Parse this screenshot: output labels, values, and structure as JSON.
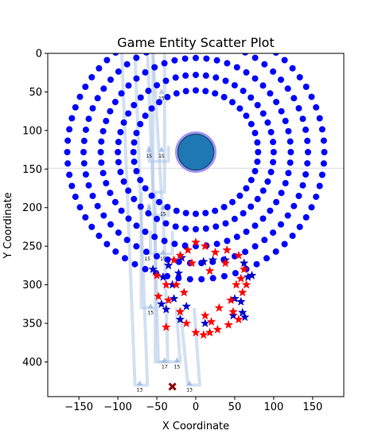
{
  "chart_data": {
    "type": "scatter",
    "title": "Game Entity Scatter Plot",
    "xlabel": "X Coordinate",
    "ylabel": "Y Coordinate",
    "xlim": [
      -190,
      190
    ],
    "ylim": [
      445,
      0
    ],
    "y_inverted": true,
    "xticks": [
      -150,
      -100,
      -50,
      0,
      50,
      100,
      150
    ],
    "yticks": [
      0,
      50,
      100,
      150,
      200,
      250,
      300,
      350,
      400
    ],
    "grid": false,
    "colors": {
      "rings": "#0000ff",
      "central": "#1f77b4",
      "central_edge": "#7b68ee",
      "blue_stars": "#0000cd",
      "red_stars": "#ff0000",
      "paths": "#aec7e8",
      "marker_x": "#8b0000"
    },
    "central_entity": {
      "x": 0,
      "y": 128,
      "radius": 25
    },
    "rings": [
      {
        "cx": 0,
        "cy": 128,
        "rx": 80,
        "ry": 80,
        "count": 40
      },
      {
        "cx": 0,
        "cy": 128,
        "rx": 100,
        "ry": 100,
        "count": 48
      },
      {
        "cx": 0,
        "cy": 128,
        "rx": 122,
        "ry": 122,
        "count": 56
      },
      {
        "cx": 0,
        "cy": 128,
        "rx": 144,
        "ry": 144,
        "count": 62
      },
      {
        "cx": 0,
        "cy": 128,
        "rx": 165,
        "ry": 165,
        "count": 70
      }
    ],
    "blue_stars": [
      [
        -35,
        275
      ],
      [
        -42,
        290
      ],
      [
        -30,
        300
      ],
      [
        -44,
        325
      ],
      [
        -38,
        332
      ],
      [
        -28,
        318
      ],
      [
        -20,
        345
      ],
      [
        -12,
        328
      ],
      [
        10,
        270
      ],
      [
        22,
        268
      ],
      [
        38,
        268
      ],
      [
        62,
        272
      ],
      [
        67,
        290
      ],
      [
        72,
        288
      ],
      [
        50,
        318
      ],
      [
        58,
        322
      ],
      [
        60,
        336
      ],
      [
        63,
        342
      ],
      [
        48,
        340
      ],
      [
        12,
        350
      ],
      [
        -55,
        280
      ],
      [
        -22,
        285
      ],
      [
        -18,
        265
      ]
    ],
    "red_stars": [
      [
        0,
        245
      ],
      [
        12,
        250
      ],
      [
        25,
        258
      ],
      [
        40,
        255
      ],
      [
        55,
        262
      ],
      [
        -10,
        255
      ],
      [
        -20,
        262
      ],
      [
        -28,
        268
      ],
      [
        -5,
        272
      ],
      [
        18,
        282
      ],
      [
        58,
        292
      ],
      [
        65,
        300
      ],
      [
        52,
        300
      ],
      [
        60,
        310
      ],
      [
        45,
        320
      ],
      [
        48,
        335
      ],
      [
        55,
        345
      ],
      [
        42,
        352
      ],
      [
        28,
        358
      ],
      [
        18,
        362
      ],
      [
        10,
        365
      ],
      [
        0,
        362
      ],
      [
        -12,
        350
      ],
      [
        -20,
        335
      ],
      [
        -35,
        320
      ],
      [
        -25,
        300
      ],
      [
        -38,
        300
      ],
      [
        -50,
        288
      ],
      [
        -48,
        315
      ],
      [
        -38,
        355
      ],
      [
        30,
        330
      ],
      [
        12,
        340
      ],
      [
        38,
        272
      ],
      [
        -15,
        310
      ],
      [
        62,
        280
      ],
      [
        20,
        348
      ]
    ],
    "path_lines": [
      [
        [
          -95,
          0
        ],
        [
          -78,
          430
        ],
        [
          -62,
          430
        ],
        [
          -78,
          0
        ]
      ],
      [
        [
          -62,
          0
        ],
        [
          -52,
          250
        ],
        [
          -48,
          400
        ],
        [
          -36,
          400
        ],
        [
          -40,
          250
        ],
        [
          -55,
          0
        ]
      ],
      [
        [
          -55,
          0
        ],
        [
          -55,
          180
        ],
        [
          -40,
          180
        ],
        [
          -40,
          0
        ]
      ],
      [
        [
          -70,
          180
        ],
        [
          -70,
          330
        ],
        [
          -52,
          330
        ],
        [
          -52,
          180
        ]
      ],
      [
        [
          -52,
          330
        ],
        [
          -52,
          400
        ],
        [
          -20,
          400
        ],
        [
          -25,
          330
        ]
      ],
      [
        [
          -20,
          330
        ],
        [
          -10,
          430
        ],
        [
          5,
          430
        ],
        [
          -2,
          330
        ]
      ],
      [
        [
          -60,
          120
        ],
        [
          -60,
          140
        ],
        [
          -35,
          140
        ],
        [
          -35,
          120
        ]
      ],
      [
        [
          -60,
          195
        ],
        [
          -60,
          210
        ],
        [
          -35,
          210
        ],
        [
          -35,
          195
        ]
      ],
      [
        [
          -58,
          230
        ],
        [
          -58,
          260
        ],
        [
          -30,
          260
        ],
        [
          -30,
          230
        ]
      ]
    ],
    "triangle_markers": [
      {
        "x": -72,
        "y": 428,
        "label": "13"
      },
      {
        "x": -8,
        "y": 428,
        "label": "13"
      },
      {
        "x": -40,
        "y": 398,
        "label": "17"
      },
      {
        "x": -24,
        "y": 398,
        "label": "15"
      },
      {
        "x": -58,
        "y": 328,
        "label": "15"
      },
      {
        "x": -62,
        "y": 258,
        "label": "15"
      },
      {
        "x": -42,
        "y": 258,
        "label": "15"
      },
      {
        "x": -60,
        "y": 200,
        "label": "15"
      },
      {
        "x": -42,
        "y": 200,
        "label": "15"
      },
      {
        "x": -60,
        "y": 125,
        "label": "15"
      },
      {
        "x": -44,
        "y": 125,
        "label": "15"
      },
      {
        "x": -44,
        "y": 50,
        "label": "15"
      },
      {
        "x": -64,
        "y": -15,
        "label": "15"
      },
      {
        "x": -44,
        "y": -15,
        "label": "15"
      }
    ],
    "x_marker": {
      "x": -30,
      "y": 432
    },
    "crosshair_y": 149
  }
}
